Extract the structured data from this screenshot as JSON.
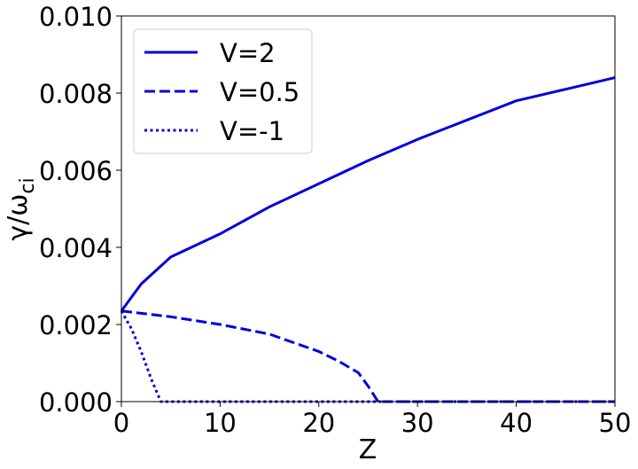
{
  "chart_data": {
    "type": "line",
    "title": "",
    "xlabel": "Z",
    "ylabel_main": "γ/ω",
    "ylabel_sub": "ci",
    "xlim": [
      0,
      50
    ],
    "ylim": [
      0,
      0.01
    ],
    "grid": false,
    "legend_position": "upper-left",
    "x_ticks": [
      0,
      10,
      20,
      30,
      40,
      50
    ],
    "x_tick_labels": [
      "0",
      "10",
      "20",
      "30",
      "40",
      "50"
    ],
    "y_ticks": [
      0,
      0.002,
      0.004,
      0.006,
      0.008,
      0.01
    ],
    "y_tick_labels": [
      "0.000",
      "0.002",
      "0.004",
      "0.006",
      "0.008",
      "0.010"
    ],
    "series": [
      {
        "name": "V=2",
        "style": "solid",
        "color": "#0000dd",
        "x": [
          0,
          2,
          5,
          10,
          15,
          20,
          25,
          30,
          35,
          40,
          45,
          50
        ],
        "y": [
          0.00235,
          0.00305,
          0.00375,
          0.00435,
          0.00505,
          0.00565,
          0.00625,
          0.0068,
          0.0073,
          0.0078,
          0.0081,
          0.0084
        ]
      },
      {
        "name": "V=0.5",
        "style": "dashed",
        "color": "#0000dd",
        "x": [
          0,
          5,
          10,
          15,
          20,
          22,
          24,
          25,
          26,
          30,
          40,
          50
        ],
        "y": [
          0.00235,
          0.0022,
          0.002,
          0.00175,
          0.0013,
          0.00105,
          0.00075,
          0.0004,
          0,
          0,
          0,
          0
        ]
      },
      {
        "name": "V=-1",
        "style": "dotted",
        "color": "#0000dd",
        "x": [
          0,
          1,
          2,
          3,
          4,
          10,
          20,
          30,
          40,
          50
        ],
        "y": [
          0.00235,
          0.0019,
          0.0013,
          0.0006,
          0,
          0,
          0,
          0,
          0,
          0
        ]
      }
    ]
  }
}
